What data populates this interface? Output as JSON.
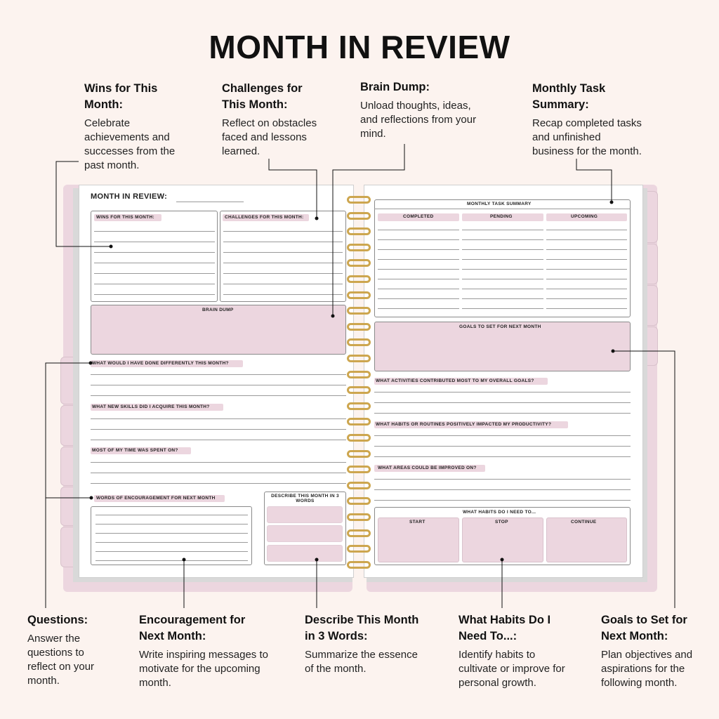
{
  "title": "MONTH IN REVIEW",
  "callouts": {
    "wins": {
      "heading": "Wins for This Month:",
      "desc": "Celebrate achievements and successes from the past month."
    },
    "challenges": {
      "heading": "Challenges for This Month:",
      "desc": "Reflect on obstacles faced and lessons learned."
    },
    "brain_dump": {
      "heading": "Brain Dump:",
      "desc": "Unload thoughts, ideas, and reflections from your mind."
    },
    "task_summary": {
      "heading": "Monthly Task Summary:",
      "desc": "Recap completed tasks and unfinished business for the month."
    },
    "questions": {
      "heading": "Questions:",
      "desc": "Answer the questions to reflect on your month."
    },
    "encouragement": {
      "heading": "Encouragement for Next Month:",
      "desc": "Write inspiring messages to motivate for the upcoming month."
    },
    "three_words": {
      "heading": "Describe This Month in 3 Words:",
      "desc": "Summarize the essence of the month."
    },
    "habits": {
      "heading": "What Habits Do I Need To...:",
      "desc": "Identify habits to cultivate or improve for personal growth."
    },
    "goals": {
      "heading": "Goals to Set for Next Month:",
      "desc": "Plan objectives and aspirations for the following month."
    }
  },
  "left_page": {
    "header": "MONTH IN REVIEW:",
    "wins": "WINS FOR THIS MONTH:",
    "challenges": "CHALLENGES FOR THIS MONTH:",
    "brain_dump": "BRAIN DUMP",
    "q1": "WHAT WOULD I HAVE DONE DIFFERENTLY THIS MONTH?",
    "q2": "WHAT NEW SKILLS DID I ACQUIRE THIS MONTH?",
    "q3": "MOST OF MY TIME WAS SPENT ON?",
    "encouragement": "WORDS OF ENCOURAGEMENT FOR NEXT MONTH",
    "three_words": "DESCRIBE THIS MONTH IN 3 WORDS"
  },
  "right_page": {
    "task_summary": "MONTHLY TASK SUMMARY",
    "completed": "COMPLETED",
    "pending": "PENDING",
    "upcoming": "UPCOMING",
    "goals": "GOALS TO SET FOR NEXT MONTH",
    "q1": "WHAT ACTIVITIES CONTRIBUTED MOST TO MY OVERALL GOALS?",
    "q2": "WHAT HABITS OR ROUTINES POSITIVELY IMPACTED MY PRODUCTIVITY?",
    "q3": "WHAT AREAS COULD BE IMPROVED ON?",
    "habits": "WHAT HABITS DO I NEED TO...",
    "start": "START",
    "stop": "STOP",
    "continue": "CONTINUE"
  },
  "colors": {
    "background": "#fcf3ef",
    "accent_pink": "#ecd6df",
    "coil_gold": "#cda64f"
  }
}
